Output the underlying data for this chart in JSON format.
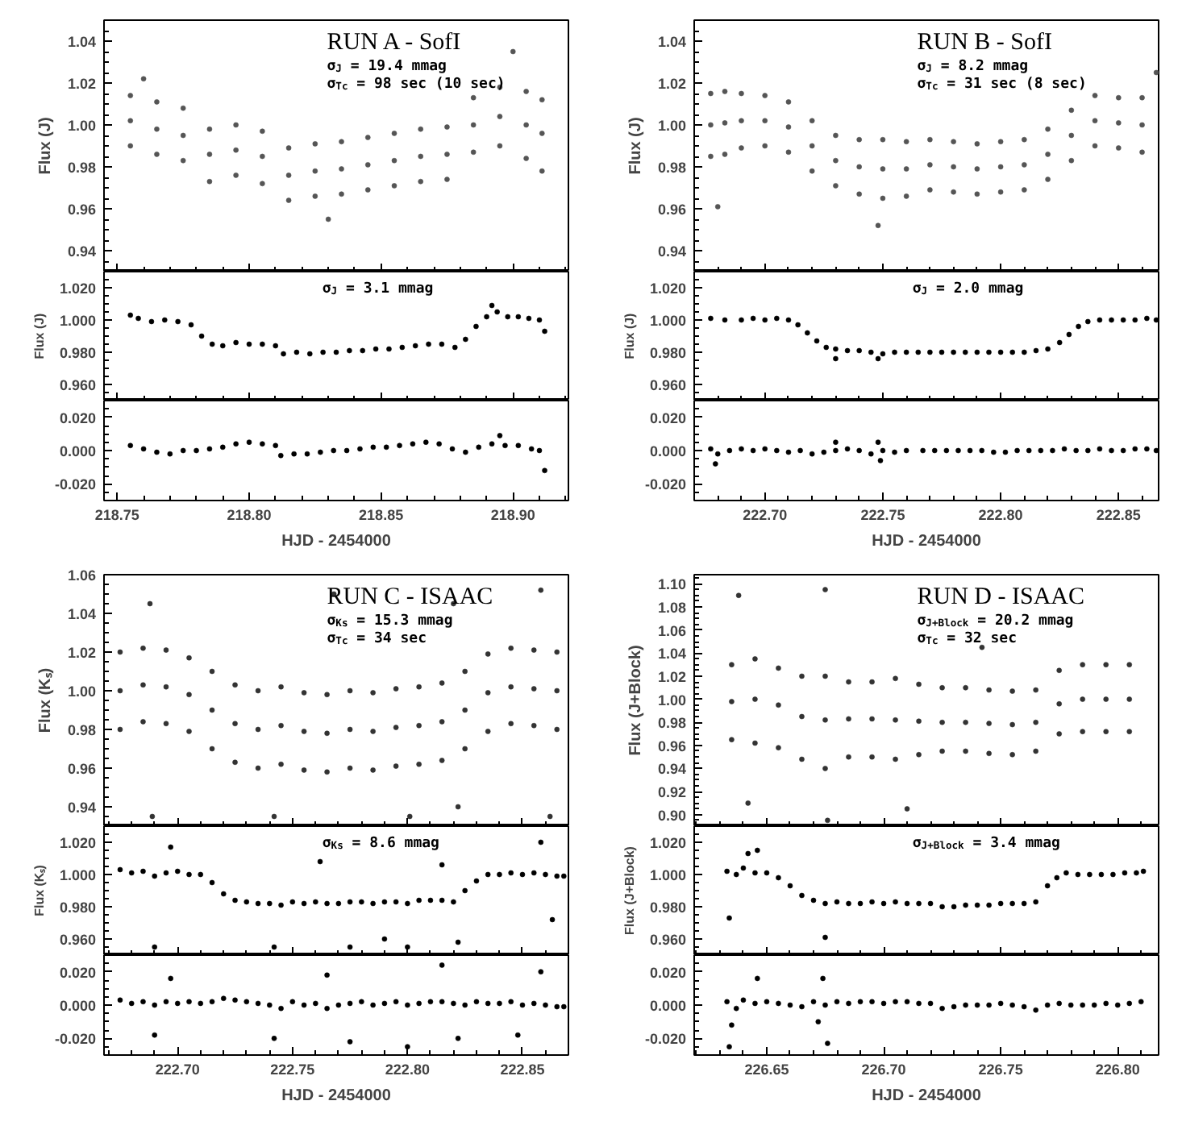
{
  "chart_data": [
    {
      "type": "scatter",
      "marker": "circle",
      "ylabel": "Flux (J)",
      "tick_labels": "y",
      "annotations": [
        "RUN A - SofI",
        "σ$_{J}$ = 19.4 mmag",
        "σ$_{Tc}$ = 98 sec (10 sec)"
      ],
      "xlim": [
        218.745,
        218.921
      ],
      "xticks": [
        {
          "value": 218.75,
          "label": null
        },
        {
          "value": 218.8,
          "label": null
        },
        {
          "value": 218.85,
          "label": null
        },
        {
          "value": 218.9,
          "label": null
        }
      ],
      "ylim": [
        0.93,
        1.05
      ],
      "yticks": [
        0.94,
        0.96,
        0.98,
        {
          "value": 1.0,
          "label": "1.00"
        },
        1.02,
        1.04
      ],
      "series": [
        {
          "color": "#555555",
          "x": [
            218.755,
            218.755,
            218.755,
            218.765,
            218.765,
            218.765,
            218.775,
            218.775,
            218.775,
            218.785,
            218.785,
            218.785,
            218.795,
            218.795,
            218.795,
            218.805,
            218.805,
            218.805,
            218.815,
            218.815,
            218.815,
            218.825,
            218.825,
            218.825,
            218.835,
            218.835,
            218.835,
            218.845,
            218.845,
            218.845,
            218.855,
            218.855,
            218.855,
            218.865,
            218.865,
            218.865,
            218.875,
            218.875,
            218.875,
            218.885,
            218.885,
            218.885,
            218.895,
            218.895,
            218.895,
            218.905,
            218.905,
            218.905,
            218.911,
            218.911,
            218.911,
            218.83,
            218.9,
            218.76
          ],
          "values": [
            1.002,
            1.014,
            0.99,
            0.998,
            1.011,
            0.986,
            0.995,
            1.008,
            0.983,
            0.986,
            0.998,
            0.973,
            0.988,
            1.0,
            0.976,
            0.985,
            0.997,
            0.972,
            0.976,
            0.989,
            0.964,
            0.978,
            0.991,
            0.966,
            0.979,
            0.992,
            0.967,
            0.981,
            0.994,
            0.969,
            0.983,
            0.996,
            0.971,
            0.985,
            0.998,
            0.973,
            0.986,
            0.999,
            0.974,
            1.0,
            1.013,
            0.987,
            1.004,
            1.018,
            0.99,
            1.0,
            1.016,
            0.984,
            0.996,
            1.012,
            0.978,
            0.955,
            1.035,
            1.022
          ]
        }
      ]
    },
    {
      "type": "scatter",
      "marker": "circle",
      "ylabel": "Flux (J)",
      "tick_labels": "y",
      "annotations": [
        "RUN B - SofI",
        "σ$_{J}$ = 8.2 mmag",
        "σ$_{Tc}$ = 31 sec (8 sec)"
      ],
      "xlim": [
        222.67,
        222.867
      ],
      "xticks": [
        {
          "value": 222.7,
          "label": null
        },
        {
          "value": 222.75,
          "label": null
        },
        {
          "value": 222.8,
          "label": null
        },
        {
          "value": 222.85,
          "label": null
        }
      ],
      "ylim": [
        0.93,
        1.05
      ],
      "yticks": [
        0.94,
        0.96,
        0.98,
        {
          "value": 1.0,
          "label": "1.00"
        },
        1.02,
        1.04
      ],
      "series": [
        {
          "color": "#555555",
          "x": [
            222.677,
            222.677,
            222.677,
            222.683,
            222.683,
            222.683,
            222.69,
            222.69,
            222.69,
            222.7,
            222.7,
            222.7,
            222.71,
            222.71,
            222.71,
            222.72,
            222.72,
            222.72,
            222.73,
            222.73,
            222.73,
            222.74,
            222.74,
            222.74,
            222.75,
            222.75,
            222.75,
            222.76,
            222.76,
            222.76,
            222.77,
            222.77,
            222.77,
            222.78,
            222.78,
            222.78,
            222.79,
            222.79,
            222.79,
            222.8,
            222.8,
            222.8,
            222.81,
            222.81,
            222.81,
            222.82,
            222.82,
            222.82,
            222.83,
            222.83,
            222.83,
            222.84,
            222.84,
            222.84,
            222.85,
            222.85,
            222.85,
            222.86,
            222.86,
            222.86,
            222.748,
            222.68,
            222.866
          ],
          "values": [
            1.0,
            1.015,
            0.985,
            1.001,
            1.016,
            0.986,
            1.002,
            1.015,
            0.989,
            1.002,
            1.014,
            0.99,
            0.999,
            1.011,
            0.987,
            0.99,
            1.002,
            0.978,
            0.983,
            0.995,
            0.971,
            0.98,
            0.993,
            0.967,
            0.979,
            0.993,
            0.965,
            0.979,
            0.992,
            0.966,
            0.981,
            0.993,
            0.969,
            0.98,
            0.992,
            0.968,
            0.979,
            0.991,
            0.967,
            0.98,
            0.992,
            0.968,
            0.981,
            0.993,
            0.969,
            0.986,
            0.998,
            0.974,
            0.995,
            1.007,
            0.983,
            1.002,
            1.014,
            0.99,
            1.001,
            1.013,
            0.989,
            1.0,
            1.013,
            0.987,
            0.952,
            0.961,
            1.025
          ]
        }
      ]
    },
    {
      "type": "scatter",
      "marker": "circle",
      "ylabel": "Flux (J)",
      "tick_labels": "y",
      "annotations": [
        "σ$_{J}$ = 3.1 mmag"
      ],
      "xlim": [
        218.745,
        218.921
      ],
      "xticks": [
        {
          "value": 218.75,
          "label": null
        },
        {
          "value": 218.8,
          "label": null
        },
        {
          "value": 218.85,
          "label": null
        },
        {
          "value": 218.9,
          "label": null
        }
      ],
      "ylim": [
        0.95,
        1.03
      ],
      "yticks": [
        {
          "value": 0.96,
          "label": "0.960"
        },
        {
          "value": 0.98,
          "label": "0.980"
        },
        {
          "value": 1.0,
          "label": "1.000"
        },
        {
          "value": 1.02,
          "label": "1.020"
        }
      ],
      "series": [
        {
          "color": "#000000",
          "x": [
            218.755,
            218.758,
            218.763,
            218.768,
            218.773,
            218.778,
            218.782,
            218.786,
            218.79,
            218.795,
            218.8,
            218.805,
            218.81,
            218.813,
            218.818,
            218.823,
            218.828,
            218.833,
            218.838,
            218.843,
            218.848,
            218.853,
            218.858,
            218.863,
            218.868,
            218.873,
            218.878,
            218.882,
            218.886,
            218.89,
            218.894,
            218.898,
            218.902,
            218.906,
            218.91,
            218.912,
            218.892
          ],
          "values": [
            1.003,
            1.001,
            0.999,
            1.0,
            0.999,
            0.997,
            0.99,
            0.985,
            0.984,
            0.986,
            0.985,
            0.985,
            0.984,
            0.979,
            0.98,
            0.979,
            0.98,
            0.98,
            0.981,
            0.981,
            0.982,
            0.982,
            0.983,
            0.984,
            0.985,
            0.985,
            0.983,
            0.988,
            0.996,
            1.002,
            1.005,
            1.002,
            1.002,
            1.001,
            1.0,
            0.993,
            1.009
          ]
        }
      ]
    },
    {
      "type": "scatter",
      "marker": "circle",
      "ylabel": "Flux (J)",
      "tick_labels": "y",
      "annotations": [
        "σ$_{J}$ = 2.0 mmag"
      ],
      "xlim": [
        222.67,
        222.867
      ],
      "xticks": [
        {
          "value": 222.7,
          "label": null
        },
        {
          "value": 222.75,
          "label": null
        },
        {
          "value": 222.8,
          "label": null
        },
        {
          "value": 222.85,
          "label": null
        }
      ],
      "ylim": [
        0.95,
        1.03
      ],
      "yticks": [
        {
          "value": 0.96,
          "label": "0.960"
        },
        {
          "value": 0.98,
          "label": "0.980"
        },
        {
          "value": 1.0,
          "label": "1.000"
        },
        {
          "value": 1.02,
          "label": "1.020"
        }
      ],
      "series": [
        {
          "color": "#000000",
          "x": [
            222.677,
            222.683,
            222.69,
            222.695,
            222.7,
            222.705,
            222.71,
            222.714,
            222.718,
            222.722,
            222.726,
            222.73,
            222.735,
            222.74,
            222.745,
            222.75,
            222.755,
            222.76,
            222.765,
            222.77,
            222.775,
            222.78,
            222.785,
            222.79,
            222.795,
            222.8,
            222.805,
            222.81,
            222.815,
            222.82,
            222.825,
            222.829,
            222.833,
            222.837,
            222.842,
            222.847,
            222.852,
            222.857,
            222.862,
            222.866,
            222.748,
            222.73
          ],
          "values": [
            1.001,
            1.0,
            1.0,
            1.001,
            1.0,
            1.001,
            1.0,
            0.997,
            0.992,
            0.987,
            0.983,
            0.982,
            0.981,
            0.981,
            0.98,
            0.979,
            0.98,
            0.98,
            0.98,
            0.98,
            0.98,
            0.98,
            0.98,
            0.98,
            0.98,
            0.98,
            0.98,
            0.98,
            0.981,
            0.982,
            0.986,
            0.991,
            0.996,
            0.999,
            1.0,
            1.0,
            1.0,
            1.0,
            1.001,
            1.0,
            0.976,
            0.976
          ]
        }
      ]
    },
    {
      "type": "scatter",
      "marker": "circle",
      "xlabel": "HJD - 2454000",
      "xlim": [
        218.745,
        218.921
      ],
      "xticks": [
        218.75,
        {
          "value": 218.8,
          "label": "218.80"
        },
        218.85,
        {
          "value": 218.9,
          "label": "218.90"
        }
      ],
      "ylim": [
        -0.03,
        0.03
      ],
      "yticks": [
        {
          "value": -0.02,
          "label": "-0.020"
        },
        {
          "value": 0.0,
          "label": "0.000"
        },
        {
          "value": 0.02,
          "label": "0.020"
        }
      ],
      "series": [
        {
          "color": "#000000",
          "x": [
            218.755,
            218.76,
            218.765,
            218.77,
            218.775,
            218.78,
            218.785,
            218.79,
            218.795,
            218.8,
            218.805,
            218.81,
            218.812,
            218.817,
            218.822,
            218.827,
            218.832,
            218.837,
            218.842,
            218.847,
            218.852,
            218.857,
            218.862,
            218.867,
            218.872,
            218.877,
            218.882,
            218.887,
            218.892,
            218.897,
            218.902,
            218.907,
            218.91,
            218.912,
            218.895
          ],
          "values": [
            0.003,
            0.001,
            -0.001,
            -0.002,
            0.0,
            0.0,
            0.001,
            0.002,
            0.004,
            0.005,
            0.004,
            0.003,
            -0.003,
            -0.002,
            -0.002,
            -0.001,
            0.0,
            0.0,
            0.001,
            0.002,
            0.002,
            0.003,
            0.004,
            0.005,
            0.004,
            0.001,
            -0.001,
            0.002,
            0.004,
            0.003,
            0.003,
            0.001,
            0.0,
            -0.012,
            0.009
          ]
        }
      ]
    },
    {
      "type": "scatter",
      "marker": "circle",
      "xlabel": "HJD - 2454000",
      "xlim": [
        222.67,
        222.867
      ],
      "xticks": [
        {
          "value": 222.7,
          "label": "222.70"
        },
        222.75,
        {
          "value": 222.8,
          "label": "222.80"
        },
        222.85
      ],
      "ylim": [
        -0.03,
        0.03
      ],
      "yticks": [
        {
          "value": -0.02,
          "label": "-0.020"
        },
        {
          "value": 0.0,
          "label": "0.000"
        },
        {
          "value": 0.02,
          "label": "0.020"
        }
      ],
      "series": [
        {
          "color": "#000000",
          "x": [
            222.677,
            222.68,
            222.685,
            222.69,
            222.695,
            222.7,
            222.705,
            222.71,
            222.715,
            222.72,
            222.725,
            222.73,
            222.735,
            222.74,
            222.745,
            222.75,
            222.755,
            222.76,
            222.767,
            222.772,
            222.777,
            222.782,
            222.787,
            222.792,
            222.797,
            222.802,
            222.807,
            222.812,
            222.817,
            222.822,
            222.827,
            222.832,
            222.837,
            222.842,
            222.847,
            222.852,
            222.857,
            222.862,
            222.866,
            222.679,
            222.73,
            222.748,
            222.749
          ],
          "values": [
            0.001,
            -0.002,
            0.0,
            0.001,
            0.0,
            0.001,
            0.0,
            -0.001,
            0.0,
            -0.002,
            -0.001,
            0.0,
            0.001,
            0.0,
            -0.002,
            0.0,
            -0.001,
            0.0,
            0.0,
            0.0,
            0.0,
            0.0,
            0.0,
            0.0,
            -0.001,
            -0.001,
            0.0,
            0.0,
            0.0,
            0.0,
            0.001,
            0.0,
            0.0,
            0.001,
            0.0,
            0.0,
            0.001,
            0.001,
            0.0,
            -0.008,
            0.005,
            0.005,
            -0.006
          ]
        }
      ]
    },
    {
      "type": "scatter",
      "marker": "circle",
      "ylabel": "Flux (Kₛ)",
      "tick_labels": "y",
      "annotations": [
        "RUN C - ISAAC",
        "σ$_{Ks}$ = 15.3 mmag",
        "σ$_{Tc}$ = 34 sec"
      ],
      "xlim": [
        222.668,
        222.87
      ],
      "xticks": [
        {
          "value": 222.7,
          "label": null
        },
        {
          "value": 222.75,
          "label": null
        },
        {
          "value": 222.8,
          "label": null
        },
        {
          "value": 222.85,
          "label": null
        }
      ],
      "ylim": [
        0.93,
        1.06
      ],
      "yticks": [
        0.94,
        0.96,
        0.98,
        {
          "value": 1.0,
          "label": "1.00"
        },
        1.02,
        1.04,
        1.06
      ],
      "series": [
        {
          "color": "#333333",
          "x": [
            222.675,
            222.675,
            222.675,
            222.685,
            222.685,
            222.685,
            222.695,
            222.695,
            222.695,
            222.705,
            222.705,
            222.705,
            222.715,
            222.715,
            222.715,
            222.725,
            222.725,
            222.725,
            222.735,
            222.735,
            222.735,
            222.745,
            222.745,
            222.745,
            222.755,
            222.755,
            222.755,
            222.765,
            222.765,
            222.765,
            222.775,
            222.775,
            222.775,
            222.785,
            222.785,
            222.785,
            222.795,
            222.795,
            222.795,
            222.805,
            222.805,
            222.805,
            222.815,
            222.815,
            222.815,
            222.825,
            222.825,
            222.825,
            222.835,
            222.835,
            222.835,
            222.845,
            222.845,
            222.845,
            222.855,
            222.855,
            222.855,
            222.865,
            222.865,
            222.865,
            222.688,
            222.689,
            222.742,
            222.768,
            222.801,
            222.82,
            222.822,
            222.858,
            222.862
          ],
          "values": [
            1.0,
            1.02,
            0.98,
            1.003,
            1.022,
            0.984,
            1.002,
            1.021,
            0.983,
            0.998,
            1.017,
            0.979,
            0.99,
            1.01,
            0.97,
            0.983,
            1.003,
            0.963,
            0.98,
            1.0,
            0.96,
            0.982,
            1.002,
            0.962,
            0.979,
            0.999,
            0.959,
            0.978,
            0.998,
            0.958,
            0.98,
            1.0,
            0.96,
            0.979,
            0.999,
            0.959,
            0.981,
            1.001,
            0.961,
            0.982,
            1.002,
            0.962,
            0.984,
            1.004,
            0.964,
            0.99,
            1.01,
            0.97,
            0.999,
            1.019,
            0.979,
            1.002,
            1.022,
            0.983,
            1.001,
            1.021,
            0.982,
            1.0,
            1.02,
            0.98,
            1.045,
            0.935,
            0.935,
            1.05,
            0.935,
            1.045,
            0.94,
            1.052,
            0.935
          ]
        }
      ]
    },
    {
      "type": "scatter",
      "marker": "circle",
      "ylabel": "Flux (J+Block)",
      "tick_labels": "y",
      "annotations": [
        "RUN D - ISAAC",
        "σ$_{J+Block}$ = 20.2 mmag",
        "σ$_{Tc}$ = 32 sec"
      ],
      "xlim": [
        226.619,
        226.8175
      ],
      "xticks": [
        {
          "value": 226.65,
          "label": null
        },
        {
          "value": 226.7,
          "label": null
        },
        {
          "value": 226.75,
          "label": null
        },
        {
          "value": 226.8,
          "label": null
        }
      ],
      "ylim": [
        0.89,
        1.108
      ],
      "yticks": [
        {
          "value": 0.9,
          "label": "0.90"
        },
        0.92,
        0.94,
        0.96,
        0.98,
        {
          "value": 1.0,
          "label": "1.00"
        },
        1.02,
        1.04,
        1.06,
        1.08,
        {
          "value": 1.1,
          "label": "1.10"
        }
      ],
      "series": [
        {
          "color": "#333333",
          "x": [
            226.635,
            226.635,
            226.635,
            226.645,
            226.645,
            226.645,
            226.655,
            226.655,
            226.655,
            226.665,
            226.665,
            226.665,
            226.675,
            226.675,
            226.675,
            226.685,
            226.685,
            226.685,
            226.695,
            226.695,
            226.695,
            226.705,
            226.705,
            226.705,
            226.715,
            226.715,
            226.715,
            226.725,
            226.725,
            226.725,
            226.735,
            226.735,
            226.735,
            226.745,
            226.745,
            226.745,
            226.755,
            226.755,
            226.755,
            226.765,
            226.765,
            226.765,
            226.775,
            226.775,
            226.775,
            226.785,
            226.785,
            226.785,
            226.795,
            226.795,
            226.795,
            226.805,
            226.805,
            226.805,
            226.638,
            226.642,
            226.675,
            226.676,
            226.71,
            226.742
          ],
          "values": [
            0.998,
            1.03,
            0.965,
            1.0,
            1.035,
            0.962,
            0.995,
            1.027,
            0.958,
            0.985,
            1.02,
            0.948,
            0.982,
            1.02,
            0.94,
            0.983,
            1.015,
            0.95,
            0.983,
            1.015,
            0.95,
            0.982,
            1.018,
            0.948,
            0.981,
            1.013,
            0.952,
            0.98,
            1.01,
            0.955,
            0.98,
            1.01,
            0.955,
            0.979,
            1.008,
            0.953,
            0.978,
            1.007,
            0.952,
            0.98,
            1.008,
            0.955,
            0.996,
            1.025,
            0.97,
            1.0,
            1.03,
            0.972,
            1.0,
            1.03,
            0.972,
            1.0,
            1.03,
            0.972,
            1.09,
            0.91,
            1.095,
            0.895,
            0.905,
            1.045
          ]
        }
      ]
    },
    {
      "type": "scatter",
      "marker": "circle",
      "ylabel": "Flux (Kₛ)",
      "tick_labels": "y",
      "annotations": [
        "σ$_{Ks}$ = 8.6 mmag"
      ],
      "xlim": [
        222.668,
        222.87
      ],
      "xticks": [
        {
          "value": 222.7,
          "label": null
        },
        {
          "value": 222.75,
          "label": null
        },
        {
          "value": 222.8,
          "label": null
        },
        {
          "value": 222.85,
          "label": null
        }
      ],
      "ylim": [
        0.95,
        1.03
      ],
      "yticks": [
        {
          "value": 0.96,
          "label": "0.960"
        },
        {
          "value": 0.98,
          "label": "0.980"
        },
        {
          "value": 1.0,
          "label": "1.000"
        },
        {
          "value": 1.02,
          "label": "1.020"
        }
      ],
      "series": [
        {
          "color": "#000000",
          "x": [
            222.675,
            222.68,
            222.685,
            222.69,
            222.695,
            222.7,
            222.705,
            222.71,
            222.715,
            222.72,
            222.725,
            222.73,
            222.735,
            222.74,
            222.745,
            222.75,
            222.755,
            222.76,
            222.765,
            222.77,
            222.775,
            222.78,
            222.785,
            222.79,
            222.795,
            222.8,
            222.805,
            222.81,
            222.815,
            222.82,
            222.825,
            222.83,
            222.835,
            222.84,
            222.845,
            222.85,
            222.855,
            222.86,
            222.865,
            222.868,
            222.69,
            222.697,
            222.742,
            222.762,
            222.775,
            222.79,
            222.8,
            222.815,
            222.822,
            222.858,
            222.863
          ],
          "values": [
            1.003,
            1.001,
            1.002,
            0.999,
            1.001,
            1.002,
            1.0,
            1.0,
            0.995,
            0.988,
            0.984,
            0.983,
            0.982,
            0.982,
            0.981,
            0.983,
            0.982,
            0.983,
            0.982,
            0.982,
            0.983,
            0.983,
            0.982,
            0.983,
            0.983,
            0.982,
            0.984,
            0.984,
            0.984,
            0.983,
            0.99,
            0.996,
            1.0,
            1.0,
            1.001,
            1.0,
            1.001,
            1.0,
            0.999,
            0.999,
            0.955,
            1.017,
            0.955,
            1.008,
            0.955,
            0.96,
            0.955,
            1.006,
            0.958,
            1.02,
            0.972
          ]
        }
      ]
    },
    {
      "type": "scatter",
      "marker": "circle",
      "ylabel": "Flux (J+Block)",
      "tick_labels": "y",
      "annotations": [
        "σ$_{J+Block}$ = 3.4 mmag"
      ],
      "xlim": [
        226.619,
        226.8175
      ],
      "xticks": [
        {
          "value": 226.65,
          "label": null
        },
        {
          "value": 226.7,
          "label": null
        },
        {
          "value": 226.75,
          "label": null
        },
        {
          "value": 226.8,
          "label": null
        }
      ],
      "ylim": [
        0.95,
        1.03
      ],
      "yticks": [
        {
          "value": 0.96,
          "label": "0.960"
        },
        {
          "value": 0.98,
          "label": "0.980"
        },
        {
          "value": 1.0,
          "label": "1.000"
        },
        {
          "value": 1.02,
          "label": "1.020"
        }
      ],
      "series": [
        {
          "color": "#000000",
          "x": [
            226.633,
            226.637,
            226.64,
            226.645,
            226.65,
            226.655,
            226.66,
            226.665,
            226.67,
            226.675,
            226.68,
            226.685,
            226.69,
            226.695,
            226.7,
            226.705,
            226.71,
            226.715,
            226.72,
            226.725,
            226.73,
            226.735,
            226.74,
            226.745,
            226.75,
            226.755,
            226.76,
            226.765,
            226.77,
            226.774,
            226.778,
            226.783,
            226.788,
            226.793,
            226.798,
            226.803,
            226.808,
            226.811,
            226.634,
            226.642,
            226.675,
            226.646
          ],
          "values": [
            1.002,
            1.0,
            1.004,
            1.001,
            1.001,
            0.998,
            0.993,
            0.987,
            0.984,
            0.982,
            0.983,
            0.982,
            0.982,
            0.983,
            0.982,
            0.983,
            0.982,
            0.982,
            0.982,
            0.98,
            0.98,
            0.981,
            0.981,
            0.981,
            0.982,
            0.982,
            0.982,
            0.983,
            0.993,
            0.998,
            1.001,
            1.0,
            1.0,
            1.0,
            1.0,
            1.001,
            1.001,
            1.002,
            0.973,
            1.013,
            0.961,
            1.015
          ]
        }
      ]
    },
    {
      "type": "scatter",
      "marker": "circle",
      "xlabel": "HJD - 2454000",
      "xlim": [
        222.668,
        222.87
      ],
      "xticks": [
        {
          "value": 222.7,
          "label": "222.70"
        },
        222.75,
        {
          "value": 222.8,
          "label": "222.80"
        },
        222.85
      ],
      "ylim": [
        -0.03,
        0.03
      ],
      "yticks": [
        {
          "value": -0.02,
          "label": "-0.020"
        },
        {
          "value": 0.0,
          "label": "0.000"
        },
        {
          "value": 0.02,
          "label": "0.020"
        }
      ],
      "series": [
        {
          "color": "#000000",
          "x": [
            222.675,
            222.68,
            222.685,
            222.69,
            222.695,
            222.7,
            222.705,
            222.71,
            222.715,
            222.72,
            222.725,
            222.73,
            222.735,
            222.74,
            222.745,
            222.75,
            222.755,
            222.76,
            222.765,
            222.77,
            222.775,
            222.78,
            222.785,
            222.79,
            222.795,
            222.8,
            222.805,
            222.81,
            222.815,
            222.82,
            222.825,
            222.83,
            222.835,
            222.84,
            222.845,
            222.85,
            222.855,
            222.86,
            222.865,
            222.868,
            222.69,
            222.697,
            222.742,
            222.765,
            222.775,
            222.8,
            222.815,
            222.822,
            222.858,
            222.848
          ],
          "values": [
            0.003,
            0.001,
            0.002,
            0.0,
            0.002,
            0.001,
            0.002,
            0.001,
            0.002,
            0.004,
            0.003,
            0.002,
            0.001,
            0.0,
            -0.002,
            0.002,
            0.0,
            0.001,
            -0.002,
            0.0,
            0.001,
            0.002,
            0.0,
            0.001,
            0.002,
            0.0,
            0.001,
            0.002,
            0.002,
            0.001,
            0.0,
            0.002,
            0.001,
            0.001,
            0.002,
            0.0,
            0.001,
            0.0,
            -0.001,
            -0.001,
            -0.018,
            0.016,
            -0.02,
            0.018,
            -0.022,
            -0.025,
            0.024,
            -0.02,
            0.02,
            -0.018
          ]
        }
      ]
    },
    {
      "type": "scatter",
      "marker": "circle",
      "xlabel": "HJD - 2454000",
      "xlim": [
        226.619,
        226.8175
      ],
      "xticks": [
        226.65,
        {
          "value": 226.7,
          "label": "226.70"
        },
        226.75,
        {
          "value": 226.8,
          "label": "226.80"
        }
      ],
      "ylim": [
        -0.03,
        0.03
      ],
      "yticks": [
        {
          "value": -0.02,
          "label": "-0.020"
        },
        {
          "value": 0.0,
          "label": "0.000"
        },
        {
          "value": 0.02,
          "label": "0.020"
        }
      ],
      "series": [
        {
          "color": "#000000",
          "x": [
            226.633,
            226.637,
            226.64,
            226.645,
            226.65,
            226.655,
            226.66,
            226.665,
            226.67,
            226.675,
            226.68,
            226.685,
            226.69,
            226.695,
            226.7,
            226.705,
            226.71,
            226.715,
            226.72,
            226.725,
            226.73,
            226.735,
            226.74,
            226.745,
            226.75,
            226.755,
            226.76,
            226.765,
            226.77,
            226.775,
            226.78,
            226.785,
            226.79,
            226.795,
            226.8,
            226.805,
            226.81,
            226.634,
            226.635,
            226.646,
            226.674,
            226.676,
            226.672
          ],
          "values": [
            0.002,
            -0.002,
            0.003,
            0.001,
            0.002,
            0.001,
            0.0,
            -0.001,
            0.002,
            0.0,
            0.002,
            0.001,
            0.002,
            0.002,
            0.001,
            0.002,
            0.002,
            0.001,
            0.001,
            -0.002,
            -0.001,
            0.0,
            0.0,
            0.0,
            0.001,
            0.0,
            -0.001,
            -0.003,
            0.0,
            0.001,
            0.0,
            0.0,
            0.0,
            0.001,
            0.0,
            0.001,
            0.002,
            -0.025,
            -0.012,
            0.016,
            0.016,
            -0.023,
            -0.01
          ]
        }
      ]
    }
  ]
}
